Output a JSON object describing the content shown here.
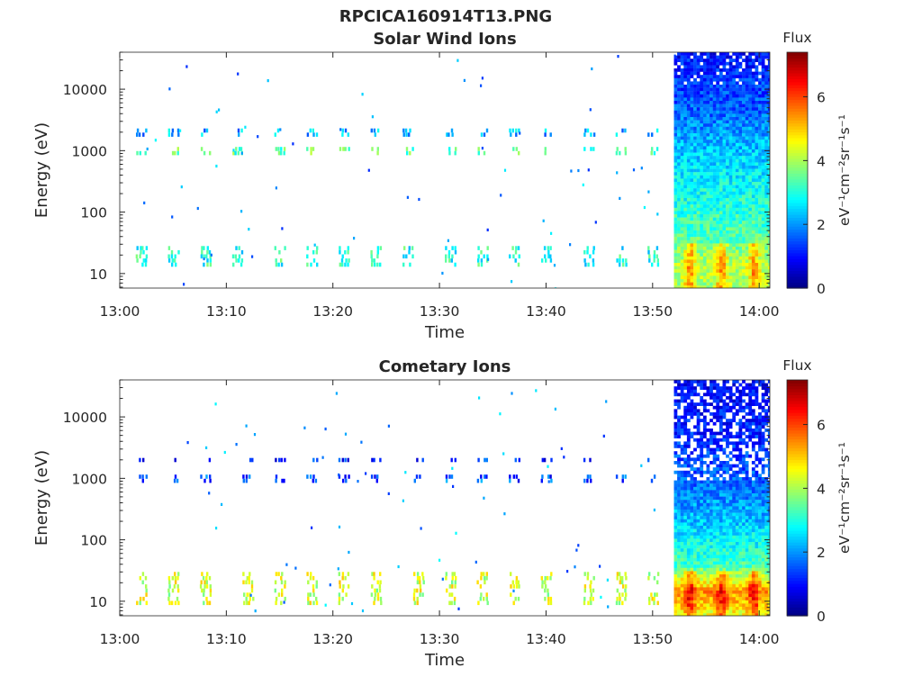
{
  "figure_title": "RPCICA160914T13.PNG",
  "colormap": "jet",
  "chart_data": [
    {
      "type": "heatmap",
      "title": "Solar Wind Ions",
      "xlabel": "Time",
      "ylabel": "Energy (eV)",
      "yscale": "log",
      "ylim": [
        5.8,
        40000
      ],
      "xlim": [
        "13:00",
        "14:01"
      ],
      "x_ticks": [
        "13:00",
        "13:10",
        "13:20",
        "13:30",
        "13:40",
        "13:50",
        "14:00"
      ],
      "y_ticks": [
        "10",
        "100",
        "1000",
        "10000"
      ],
      "colorbar": {
        "label": "Flux",
        "unit": "eV⁻¹cm⁻²sr⁻¹s⁻¹",
        "range": [
          0,
          7.4
        ],
        "ticks": [
          "0",
          "2",
          "4",
          "6"
        ]
      },
      "sweep_times": [
        "13:02",
        "13:05",
        "13:08",
        "13:11",
        "13:15",
        "13:18",
        "13:21",
        "13:24",
        "13:27",
        "13:31",
        "13:34",
        "13:37",
        "13:40",
        "13:44",
        "13:47",
        "13:50"
      ],
      "sparse_bands": [
        {
          "energy_min": 850,
          "energy_max": 1150,
          "flux": 3.4
        },
        {
          "energy_min": 1800,
          "energy_max": 2300,
          "flux": 2.2
        },
        {
          "energy_min": 14,
          "energy_max": 28,
          "flux": 3.0
        }
      ],
      "dense_start": "13:52",
      "dense_end": "14:01",
      "dense_profile": [
        {
          "energy": 40000,
          "flux": 1.0
        },
        {
          "energy": 5000,
          "flux": 1.6
        },
        {
          "energy": 1000,
          "flux": 2.4
        },
        {
          "energy": 200,
          "flux": 2.9
        },
        {
          "energy": 40,
          "flux": 3.4
        },
        {
          "energy": 15,
          "flux": 4.1
        },
        {
          "energy": 6,
          "flux": 4.0
        }
      ]
    },
    {
      "type": "heatmap",
      "title": "Cometary Ions",
      "xlabel": "Time",
      "ylabel": "Energy (eV)",
      "yscale": "log",
      "ylim": [
        5.8,
        40000
      ],
      "xlim": [
        "13:00",
        "14:01"
      ],
      "x_ticks": [
        "13:00",
        "13:10",
        "13:20",
        "13:30",
        "13:40",
        "13:50",
        "14:00"
      ],
      "y_ticks": [
        "10",
        "100",
        "1000",
        "10000"
      ],
      "colorbar": {
        "label": "Flux",
        "unit": "eV⁻¹cm⁻²sr⁻¹s⁻¹",
        "range": [
          0,
          7.4
        ],
        "ticks": [
          "0",
          "2",
          "4",
          "6"
        ]
      },
      "sweep_times": [
        "13:02",
        "13:05",
        "13:08",
        "13:12",
        "13:15",
        "13:18",
        "13:21",
        "13:24",
        "13:28",
        "13:31",
        "13:34",
        "13:37",
        "13:40",
        "13:44",
        "13:47",
        "13:50"
      ],
      "sparse_bands": [
        {
          "energy_min": 850,
          "energy_max": 1150,
          "flux": 1.5
        },
        {
          "energy_min": 1850,
          "energy_max": 2150,
          "flux": 1.2
        },
        {
          "energy_min": 9,
          "energy_max": 30,
          "flux": 4.3
        }
      ],
      "dense_start": "13:52",
      "dense_end": "14:01",
      "dense_profile": [
        {
          "energy": 40000,
          "flux": 0.9
        },
        {
          "energy": 5000,
          "flux": 1.2
        },
        {
          "energy": 1000,
          "flux": 1.6
        },
        {
          "energy": 200,
          "flux": 2.4
        },
        {
          "energy": 40,
          "flux": 3.3
        },
        {
          "energy": 15,
          "flux": 5.4
        },
        {
          "energy": 6,
          "flux": 4.4
        }
      ]
    }
  ]
}
